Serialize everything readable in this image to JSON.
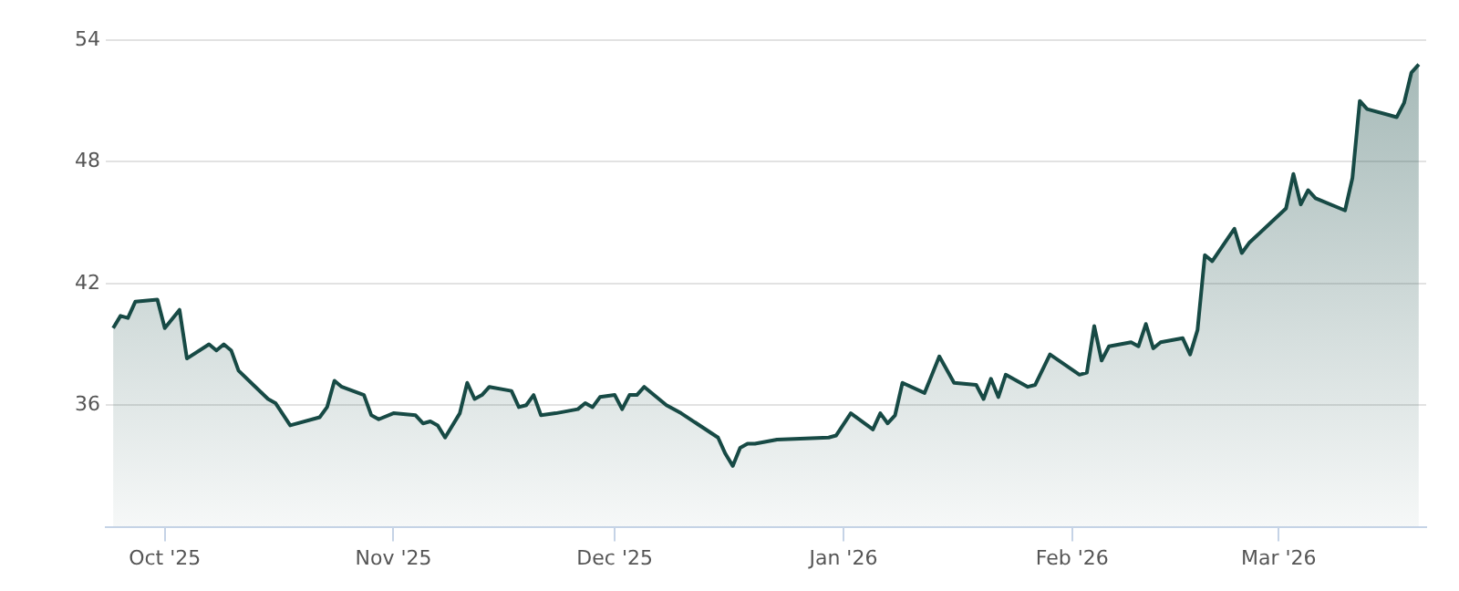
{
  "chart_data": {
    "type": "area",
    "x": [
      "2025-09-24",
      "2025-09-25",
      "2025-09-26",
      "2025-09-27",
      "2025-09-30",
      "2025-10-01",
      "2025-10-03",
      "2025-10-04",
      "2025-10-07",
      "2025-10-08",
      "2025-10-09",
      "2025-10-10",
      "2025-10-11",
      "2025-10-13",
      "2025-10-15",
      "2025-10-16",
      "2025-10-18",
      "2025-10-22",
      "2025-10-23",
      "2025-10-24",
      "2025-10-25",
      "2025-10-28",
      "2025-10-29",
      "2025-10-30",
      "2025-11-01",
      "2025-11-04",
      "2025-11-05",
      "2025-11-06",
      "2025-11-07",
      "2025-11-08",
      "2025-11-10",
      "2025-11-11",
      "2025-11-12",
      "2025-11-13",
      "2025-11-14",
      "2025-11-17",
      "2025-11-18",
      "2025-11-19",
      "2025-11-20",
      "2025-11-21",
      "2025-11-23",
      "2025-11-26",
      "2025-11-27",
      "2025-11-28",
      "2025-11-29",
      "2025-12-01",
      "2025-12-02",
      "2025-12-03",
      "2025-12-04",
      "2025-12-05",
      "2025-12-08",
      "2025-12-10",
      "2025-12-15",
      "2025-12-16",
      "2025-12-17",
      "2025-12-18",
      "2025-12-19",
      "2025-12-20",
      "2025-12-23",
      "2025-12-30",
      "2025-12-31",
      "2026-01-02",
      "2026-01-05",
      "2026-01-06",
      "2026-01-07",
      "2026-01-08",
      "2026-01-09",
      "2026-01-12",
      "2026-01-14",
      "2026-01-16",
      "2026-01-19",
      "2026-01-20",
      "2026-01-21",
      "2026-01-22",
      "2026-01-23",
      "2026-01-26",
      "2026-01-27",
      "2026-01-29",
      "2026-02-02",
      "2026-02-03",
      "2026-02-04",
      "2026-02-05",
      "2026-02-06",
      "2026-02-09",
      "2026-02-10",
      "2026-02-11",
      "2026-02-12",
      "2026-02-13",
      "2026-02-16",
      "2026-02-17",
      "2026-02-18",
      "2026-02-19",
      "2026-02-20",
      "2026-02-23",
      "2026-02-24",
      "2026-02-25",
      "2026-03-02",
      "2026-03-03",
      "2026-03-04",
      "2026-03-05",
      "2026-03-06",
      "2026-03-10",
      "2026-03-11",
      "2026-03-12",
      "2026-03-13",
      "2026-03-17",
      "2026-03-18",
      "2026-03-19",
      "2026-03-20"
    ],
    "series": [
      {
        "color": "#174a45",
        "values": [
          39.8,
          40.4,
          40.3,
          41.1,
          41.2,
          39.8,
          40.7,
          38.3,
          39.0,
          38.7,
          39.0,
          38.7,
          37.7,
          37.0,
          36.3,
          36.1,
          35.0,
          35.4,
          35.9,
          37.2,
          36.9,
          36.5,
          35.5,
          35.3,
          35.6,
          35.5,
          35.1,
          35.2,
          35.0,
          34.4,
          35.6,
          37.1,
          36.3,
          36.5,
          36.9,
          36.7,
          35.9,
          36.0,
          36.5,
          35.5,
          35.6,
          35.8,
          36.1,
          35.9,
          36.4,
          36.5,
          35.8,
          36.5,
          36.5,
          36.9,
          36.0,
          35.6,
          34.4,
          33.6,
          33.0,
          33.9,
          34.1,
          34.1,
          34.3,
          34.4,
          34.5,
          35.6,
          34.8,
          35.6,
          35.1,
          35.5,
          37.1,
          36.6,
          38.4,
          37.1,
          37.0,
          36.3,
          37.3,
          36.4,
          37.5,
          36.9,
          37.0,
          38.5,
          37.5,
          37.6,
          39.9,
          38.2,
          38.9,
          39.1,
          38.9,
          40.0,
          38.8,
          39.1,
          39.3,
          38.5,
          39.7,
          43.4,
          43.1,
          44.7,
          43.5,
          44.0,
          45.7,
          47.4,
          45.9,
          46.6,
          46.2,
          45.6,
          47.2,
          51.0,
          50.6,
          50.2,
          50.9,
          52.4,
          52.8
        ]
      }
    ],
    "xlim": [
      "2025-09-23",
      "2026-03-21"
    ],
    "xticks": [
      {
        "value": "2025-10-01",
        "label": "Oct '25"
      },
      {
        "value": "2025-11-01",
        "label": "Nov '25"
      },
      {
        "value": "2025-12-01",
        "label": "Dec '25"
      },
      {
        "value": "2026-01-01",
        "label": "Jan '26"
      },
      {
        "value": "2026-02-01",
        "label": "Feb '26"
      },
      {
        "value": "2026-03-01",
        "label": "Mar '26"
      }
    ],
    "ylim": [
      30,
      54
    ],
    "yticks": [
      36,
      42,
      48,
      54
    ],
    "grid": "y",
    "legend": false
  }
}
